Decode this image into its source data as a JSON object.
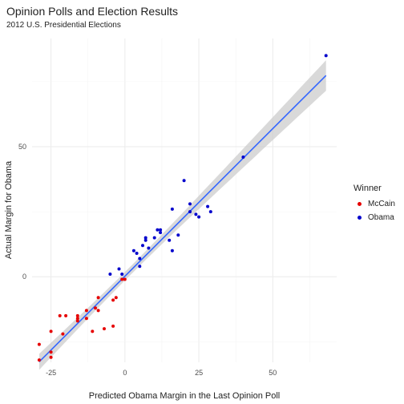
{
  "chart_data": {
    "type": "scatter",
    "title": "Opinion Polls and Election Results",
    "subtitle": "2012 U.S. Presidential Elections",
    "xlabel": "Predicted Obama Margin in the Last Opinion Poll",
    "ylabel": "Actual Margin for Obama",
    "xlim": [
      -31.4,
      71.6
    ],
    "ylim": [
      -32.9,
      91.6
    ],
    "x_ticks": [
      -25,
      0,
      25,
      50
    ],
    "y_ticks": [
      0,
      50
    ],
    "grid": true,
    "legend": {
      "title": "Winner",
      "position": "right"
    },
    "colors": {
      "McCain": "#e60000",
      "Obama": "#0000cc",
      "fit_line": "#3366ff",
      "band": "#cccccc"
    },
    "series": [
      {
        "name": "McCain",
        "points": [
          [
            -29,
            -26
          ],
          [
            -29,
            -32
          ],
          [
            -25,
            -21
          ],
          [
            -25,
            -29
          ],
          [
            -25,
            -31
          ],
          [
            -22,
            -15
          ],
          [
            -21,
            -22
          ],
          [
            -20,
            -15
          ],
          [
            -16,
            -15
          ],
          [
            -16,
            -16
          ],
          [
            -16,
            -17
          ],
          [
            -13,
            -13
          ],
          [
            -13,
            -16
          ],
          [
            -10,
            -12
          ],
          [
            -9,
            -13
          ],
          [
            -9,
            -8
          ],
          [
            -7,
            -20
          ],
          [
            -4,
            -19
          ],
          [
            -4,
            -9
          ],
          [
            -3,
            -8
          ],
          [
            -1,
            -1
          ],
          [
            0,
            -1
          ],
          [
            -11,
            -21
          ]
        ]
      },
      {
        "name": "Obama",
        "points": [
          [
            -5,
            1
          ],
          [
            -2,
            3
          ],
          [
            3,
            10
          ],
          [
            4,
            9
          ],
          [
            5,
            4
          ],
          [
            5,
            7
          ],
          [
            6,
            12
          ],
          [
            7,
            14
          ],
          [
            7,
            15
          ],
          [
            8,
            11
          ],
          [
            10,
            15
          ],
          [
            11,
            18
          ],
          [
            12,
            18
          ],
          [
            12,
            17
          ],
          [
            15,
            14
          ],
          [
            16,
            26
          ],
          [
            16,
            10
          ],
          [
            18,
            16
          ],
          [
            20,
            37
          ],
          [
            22,
            28
          ],
          [
            22,
            25
          ],
          [
            24,
            24
          ],
          [
            25,
            23
          ],
          [
            28,
            27
          ],
          [
            29,
            25
          ],
          [
            40,
            46
          ],
          [
            68,
            85
          ],
          [
            -1,
            1
          ]
        ]
      }
    ],
    "fit": {
      "method": "linear regression",
      "x_range": [
        -29,
        68
      ],
      "intercept": 0.2,
      "slope": 1.135
    }
  }
}
